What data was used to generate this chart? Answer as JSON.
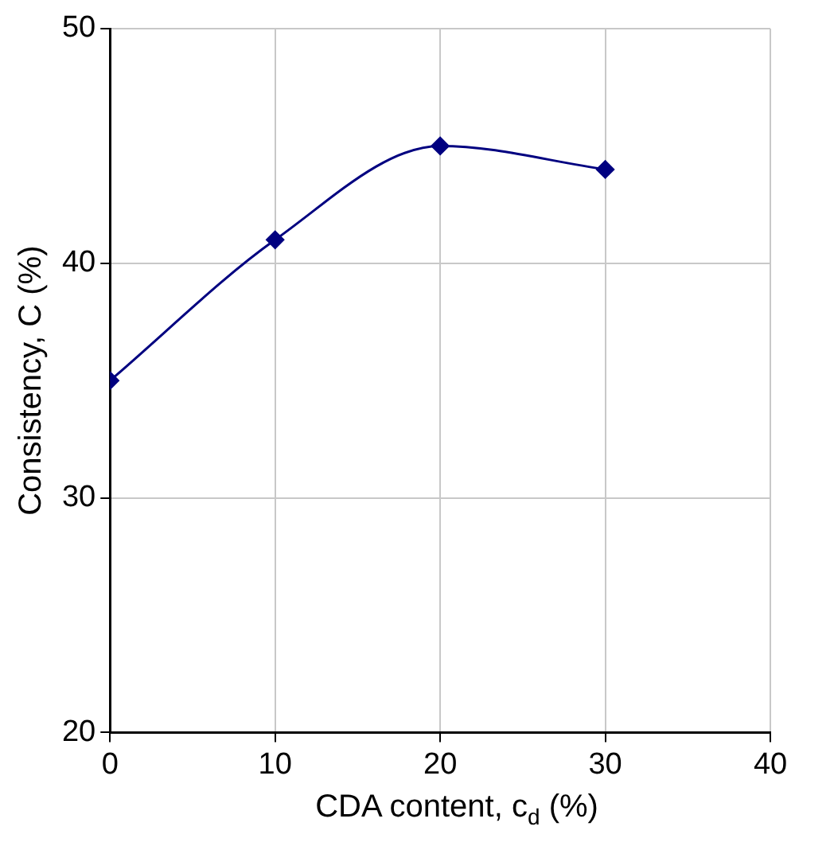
{
  "chart_data": {
    "type": "line",
    "xlabel": "CDA content, c$_{d}$ (%)",
    "ylabel": "Consistency, C (%)",
    "x": [
      0,
      10,
      20,
      30
    ],
    "series": [
      {
        "color": "#000080",
        "values": [
          35,
          41,
          45,
          44
        ]
      }
    ],
    "xlim": [
      0,
      40
    ],
    "xticks": [
      0,
      10,
      20,
      30,
      40
    ],
    "ylim": [
      20,
      50
    ],
    "yticks": [
      20,
      30,
      40,
      50
    ],
    "grid": true,
    "legend": false,
    "marker": "diamond",
    "line_style": "solid"
  }
}
